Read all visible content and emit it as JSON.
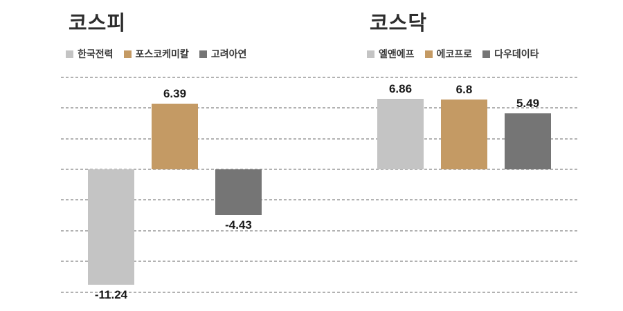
{
  "chart_data": [
    {
      "type": "bar",
      "title": "코스피",
      "categories": [
        "한국전력",
        "포스코케미칼",
        "고려아연"
      ],
      "values": [
        -11.24,
        6.39,
        -4.43
      ],
      "value_labels": [
        "-11.24",
        "6.39",
        "-4.43"
      ],
      "bar_colors": [
        "#c4c4c4",
        "#c49a64",
        "#757575"
      ],
      "xlabel": "",
      "ylabel": "",
      "ylim": [
        -12,
        9
      ],
      "gridline_values": [
        9,
        6,
        3,
        0,
        -3,
        -6,
        -9,
        -12
      ],
      "grid_style": "dashed",
      "legend_position": "top-left",
      "legend_entries": [
        "한국전력",
        "포스코케미칼",
        "고려아연"
      ]
    },
    {
      "type": "bar",
      "title": "코스닥",
      "categories": [
        "엘앤에프",
        "에코프로",
        "다우데이타"
      ],
      "values": [
        6.86,
        6.8,
        5.49
      ],
      "value_labels": [
        "6.86",
        "6.8",
        "5.49"
      ],
      "bar_colors": [
        "#c4c4c4",
        "#c49a64",
        "#757575"
      ],
      "xlabel": "",
      "ylabel": "",
      "ylim": [
        -12,
        9
      ],
      "gridline_values": [
        9,
        6,
        3,
        0,
        -3,
        -6,
        -9,
        -12
      ],
      "grid_style": "dashed",
      "legend_position": "top-left",
      "legend_entries": [
        "엘앤에프",
        "에코프로",
        "다우데이타"
      ]
    }
  ],
  "colors": {
    "series_1": "#c4c4c4",
    "series_2": "#c49a64",
    "series_3": "#757575",
    "gridline": "#b2b2b2",
    "title_text": "#2d2d2d",
    "label_text": "#1a1a1a",
    "background": "#ffffff"
  }
}
